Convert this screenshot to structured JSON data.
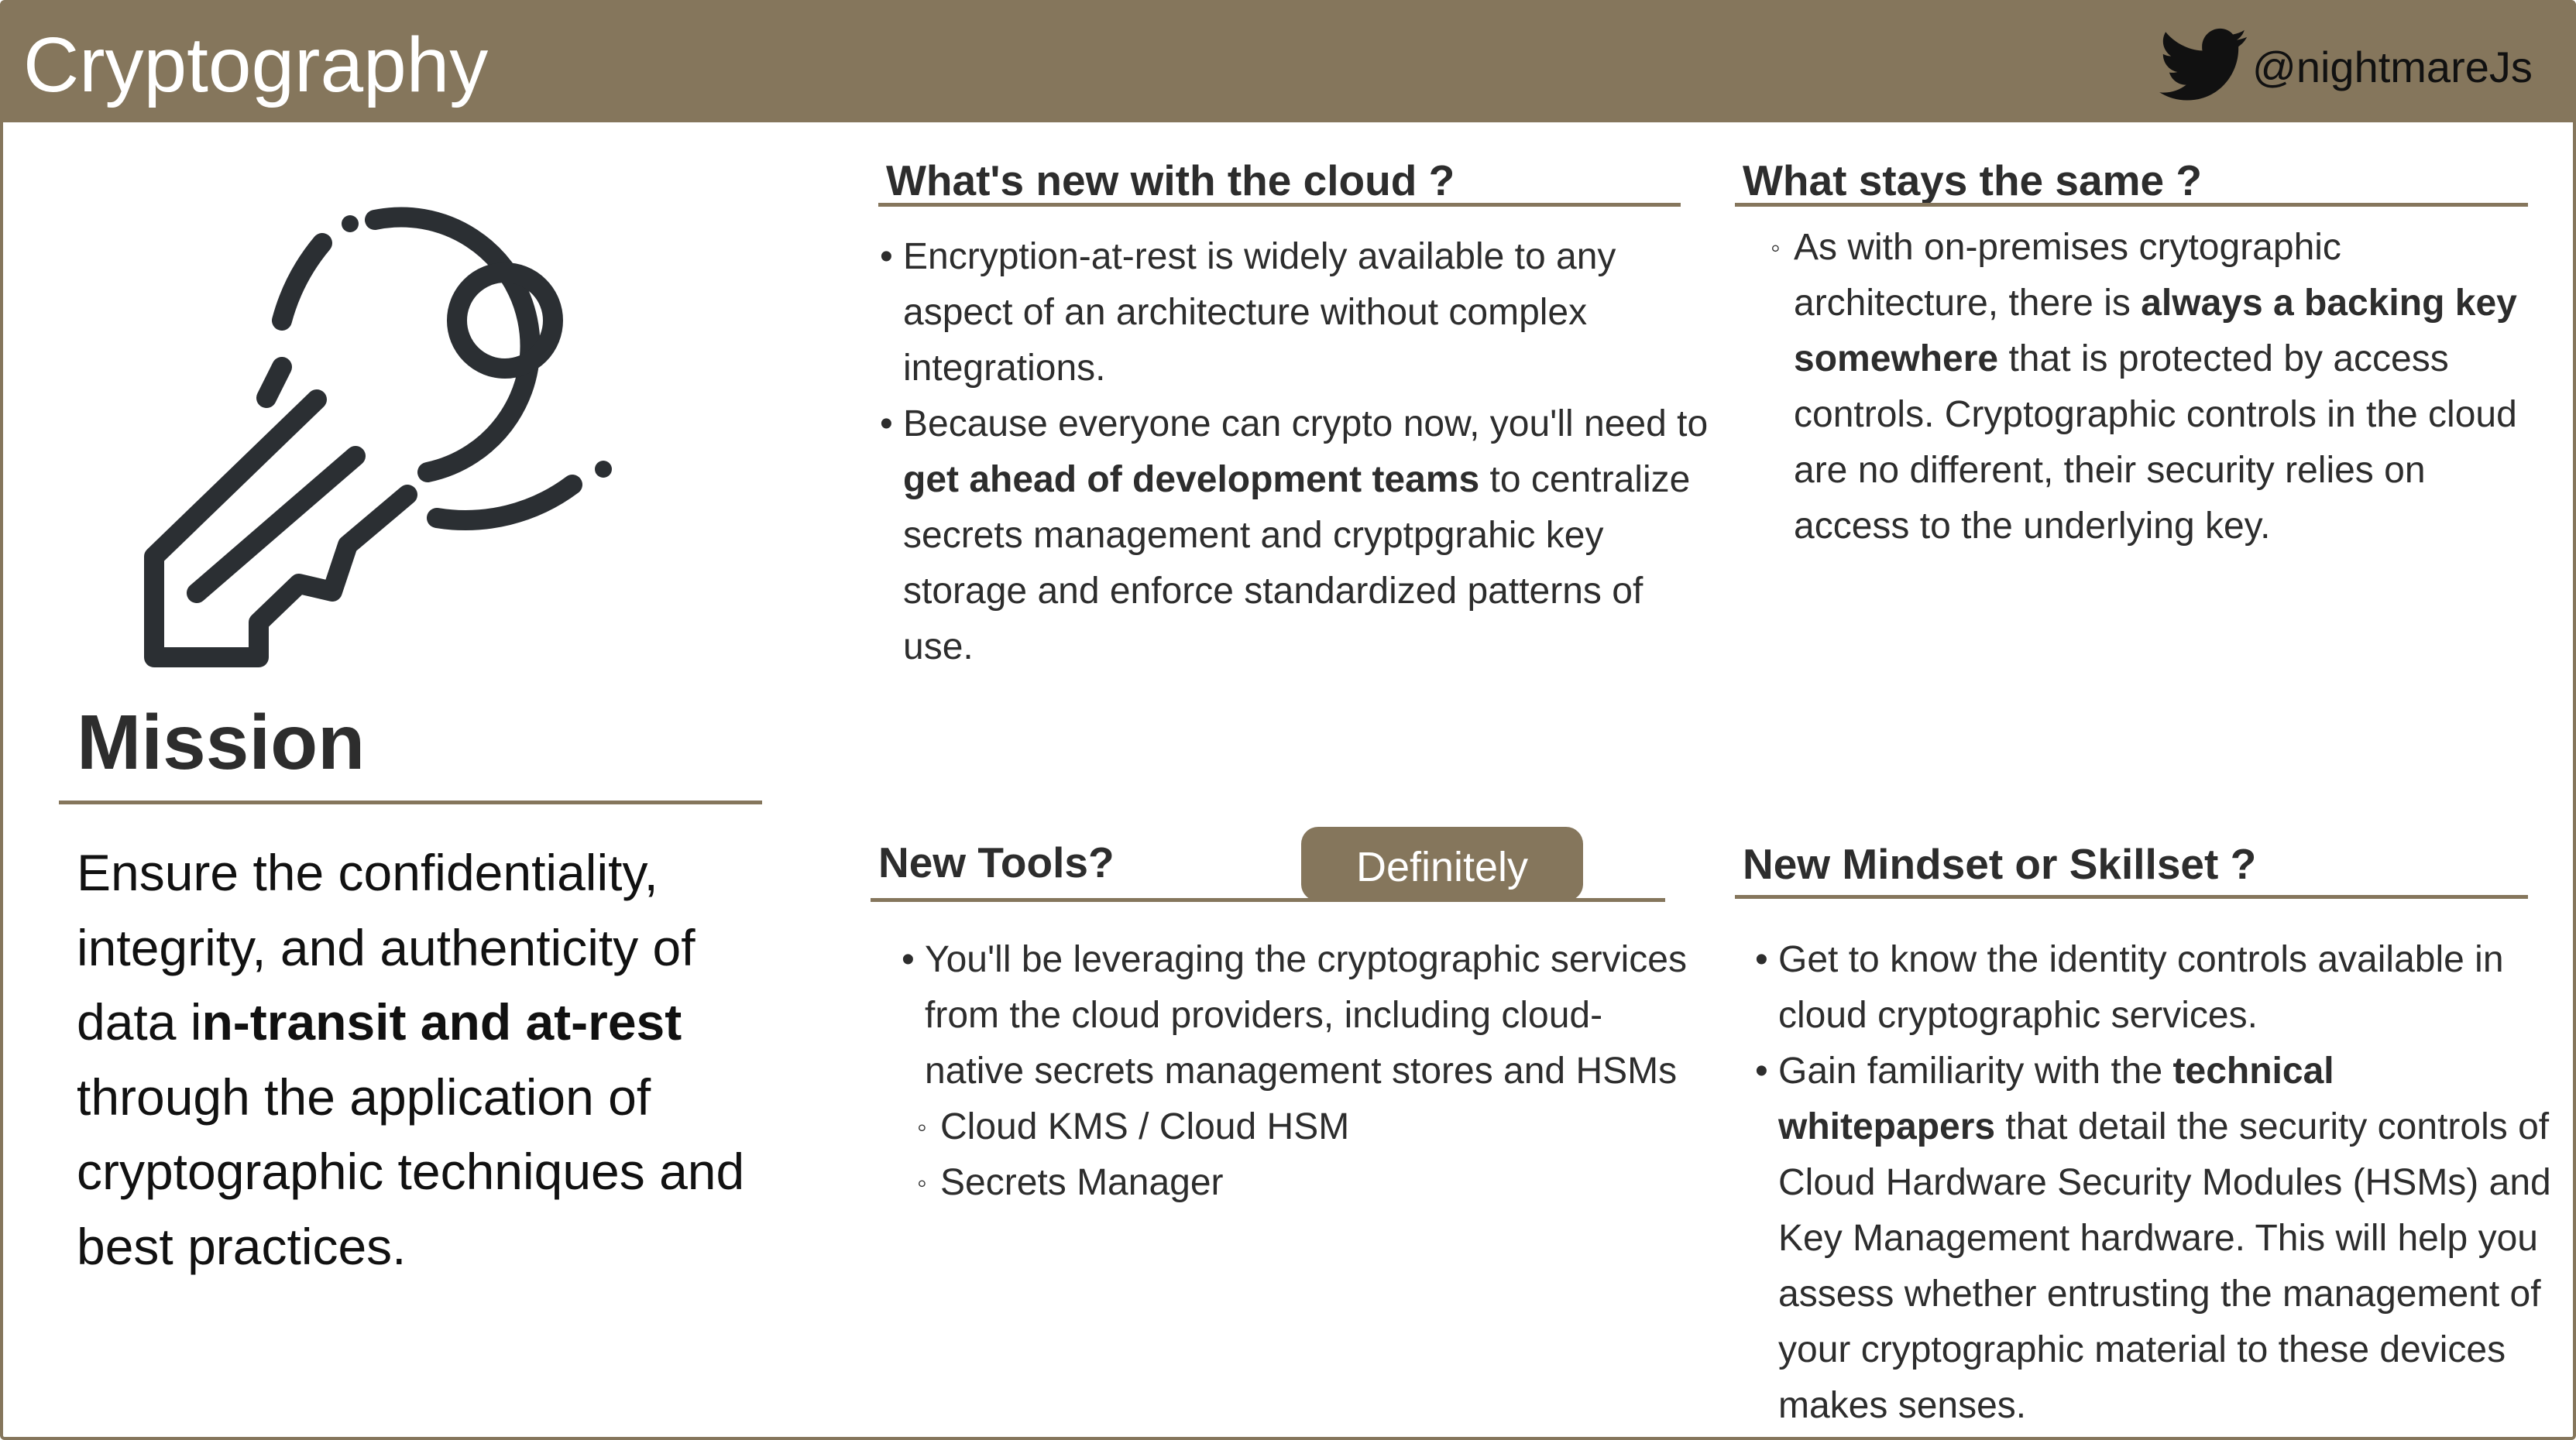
{
  "header": {
    "title": "Cryptography",
    "handle": "@nightmareJs"
  },
  "icons": {
    "twitter": "twitter-bird-icon",
    "key": "key-icon"
  },
  "colors": {
    "brand": "#85765c",
    "text": "#2d2d2d"
  },
  "mission": {
    "title": "Mission",
    "text_before": "Ensure the confidentiality, integrity, and authenticity of data i",
    "text_bold": "n-transit and at-rest",
    "text_after": " through the application of cryptographic techniques and best practices."
  },
  "whats_new": {
    "title": "What's new with the cloud ?",
    "items": [
      {
        "text": "Encryption-at-rest is widely available to any aspect of an architecture without complex integrations."
      },
      {
        "pre": "Because everyone can crypto now, you'll need to ",
        "bold": "get ahead of development teams",
        "post": " to centralize secrets management and cryptpgrahic key storage and enforce standardized patterns of use."
      }
    ]
  },
  "stays_same": {
    "title": "What stays the same ?",
    "items": [
      {
        "pre": "As with on-premises crytographic architecture, there is ",
        "bold": "always a backing key somewhere",
        "post": " that is protected by access controls. Cryptographic controls in the cloud are no different, their security relies on access to the underlying key."
      }
    ]
  },
  "new_tools": {
    "title": "New Tools?",
    "badge": "Definitely",
    "items": [
      {
        "text": "You'll be leveraging the cryptographic services from the cloud providers, including cloud-native secrets management stores and HSMs"
      }
    ],
    "sub_items": [
      {
        "text": "Cloud KMS / Cloud HSM"
      },
      {
        "text": "Secrets Manager"
      }
    ]
  },
  "new_mindset": {
    "title": "New Mindset or Skillset ?",
    "items": [
      {
        "text": "Get to know the identity controls available in cloud cryptographic services."
      },
      {
        "pre": "Gain familiarity with the ",
        "bold": "technical whitepapers",
        "post": " that detail the security controls of Cloud Hardware Security Modules (HSMs) and Key Management hardware. This will help you assess whether entrusting the management of your cryptographic material to these devices makes senses."
      }
    ]
  }
}
